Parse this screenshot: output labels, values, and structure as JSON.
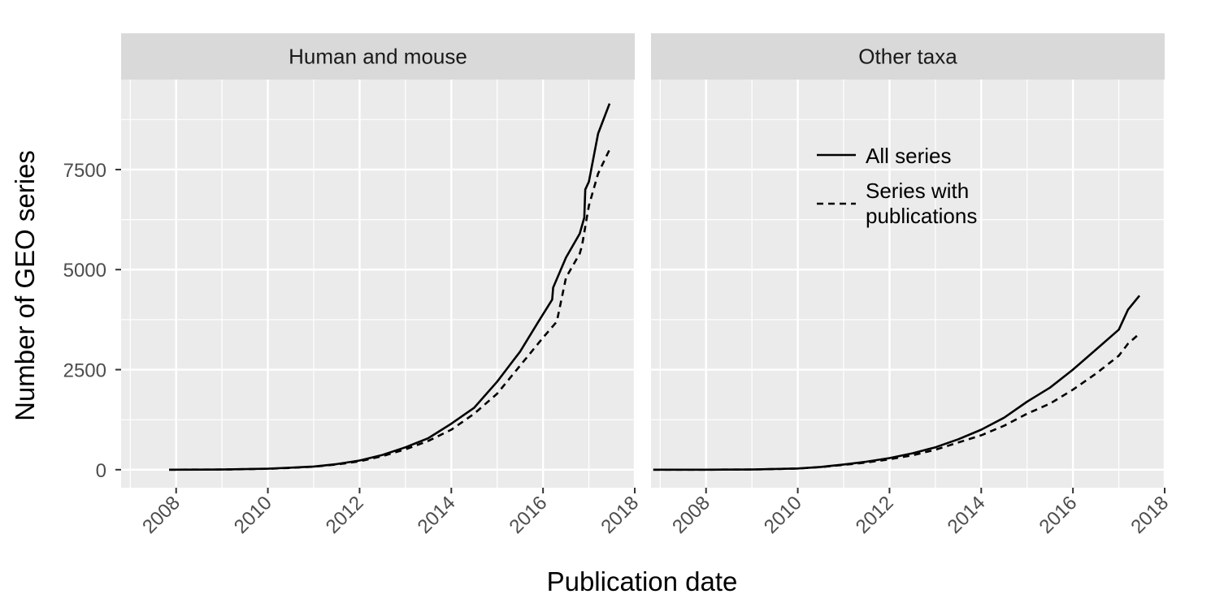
{
  "chart_data": {
    "type": "line",
    "xlabel": "Publication date",
    "ylabel": "Number of GEO series",
    "x_ticks": [
      "2008",
      "2010",
      "2012",
      "2014",
      "2016",
      "2018"
    ],
    "y_ticks": [
      0,
      2500,
      5000,
      7500
    ],
    "xlim": [
      2006.8,
      2018.0
    ],
    "ylim": [
      -450,
      9750
    ],
    "grid": true,
    "legend": {
      "placement": "inside top-right",
      "entries": [
        {
          "label": "All series",
          "style": "solid"
        },
        {
          "label": "Series with publications",
          "style": "dashed"
        }
      ]
    },
    "panels": [
      {
        "title": "Human and mouse",
        "series": [
          {
            "name": "All series",
            "style": "solid",
            "x": [
              2007.85,
              2009.0,
              2010.0,
              2010.5,
              2011.0,
              2011.5,
              2012.0,
              2012.5,
              2013.0,
              2013.5,
              2014.0,
              2014.5,
              2015.0,
              2015.5,
              2015.9,
              2016.2,
              2016.22,
              2016.5,
              2016.8,
              2016.9,
              2016.92,
              2017.0,
              2017.2,
              2017.45
            ],
            "y": [
              0,
              5,
              25,
              50,
              80,
              140,
              230,
              370,
              560,
              790,
              1150,
              1550,
              2200,
              2950,
              3700,
              4250,
              4550,
              5300,
              5900,
              6300,
              7000,
              7200,
              8400,
              9150
            ]
          },
          {
            "name": "Series with publications",
            "style": "dashed",
            "x": [
              2007.85,
              2009.0,
              2010.0,
              2010.5,
              2011.0,
              2011.5,
              2012.0,
              2012.5,
              2013.0,
              2013.5,
              2014.0,
              2014.5,
              2015.0,
              2015.5,
              2016.0,
              2016.3,
              2016.5,
              2016.8,
              2016.85,
              2017.0,
              2017.2,
              2017.45
            ],
            "y": [
              0,
              5,
              22,
              45,
              75,
              130,
              210,
              340,
              510,
              720,
              1000,
              1400,
              1900,
              2600,
              3300,
              3700,
              4800,
              5400,
              5600,
              6600,
              7400,
              8000
            ]
          }
        ]
      },
      {
        "title": "Other taxa",
        "series": [
          {
            "name": "All series",
            "style": "solid",
            "x": [
              2006.85,
              2008.0,
              2009.0,
              2010.0,
              2010.5,
              2011.0,
              2011.5,
              2012.0,
              2012.5,
              2013.0,
              2013.5,
              2014.0,
              2014.5,
              2015.0,
              2015.5,
              2016.0,
              2016.5,
              2017.0,
              2017.1,
              2017.2,
              2017.45
            ],
            "y": [
              0,
              0,
              5,
              30,
              70,
              130,
              200,
              290,
              410,
              560,
              760,
              1000,
              1300,
              1700,
              2050,
              2500,
              3000,
              3500,
              3750,
              4000,
              4350
            ]
          },
          {
            "name": "Series with publications",
            "style": "dashed",
            "x": [
              2006.85,
              2008.0,
              2009.0,
              2010.0,
              2010.5,
              2011.0,
              2011.5,
              2012.0,
              2012.5,
              2013.0,
              2013.5,
              2014.0,
              2014.5,
              2015.0,
              2015.5,
              2016.0,
              2016.5,
              2017.0,
              2017.2,
              2017.45
            ],
            "y": [
              0,
              0,
              5,
              28,
              65,
              120,
              180,
              260,
              360,
              500,
              680,
              860,
              1100,
              1400,
              1650,
              2000,
              2400,
              2850,
              3150,
              3400
            ]
          }
        ]
      }
    ]
  }
}
